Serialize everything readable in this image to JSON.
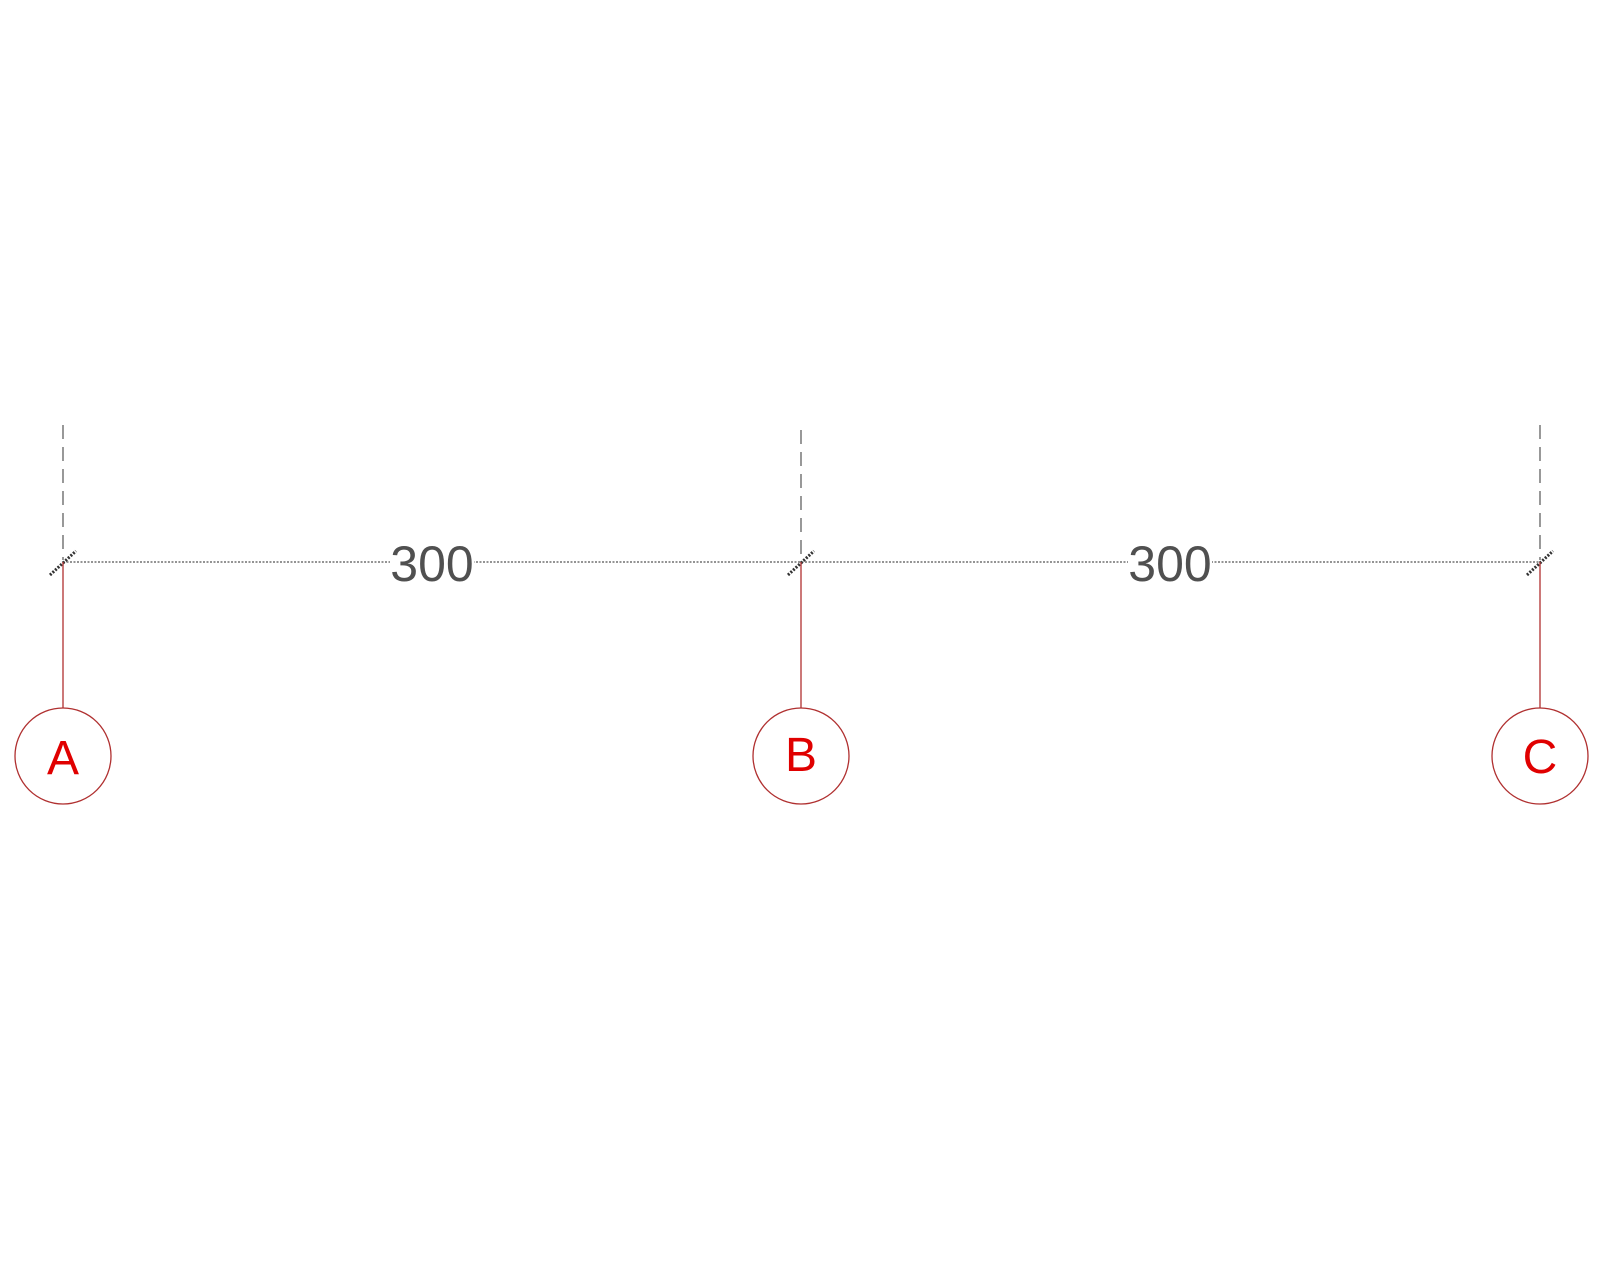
{
  "diagram": {
    "grid_lines": [
      {
        "label": "A"
      },
      {
        "label": "B"
      },
      {
        "label": "C"
      }
    ],
    "dimensions": [
      {
        "value": "300"
      },
      {
        "value": "300"
      }
    ],
    "colors": {
      "grid": "#b03030",
      "grid_label": "#e00000",
      "dimension": "#505050"
    }
  }
}
